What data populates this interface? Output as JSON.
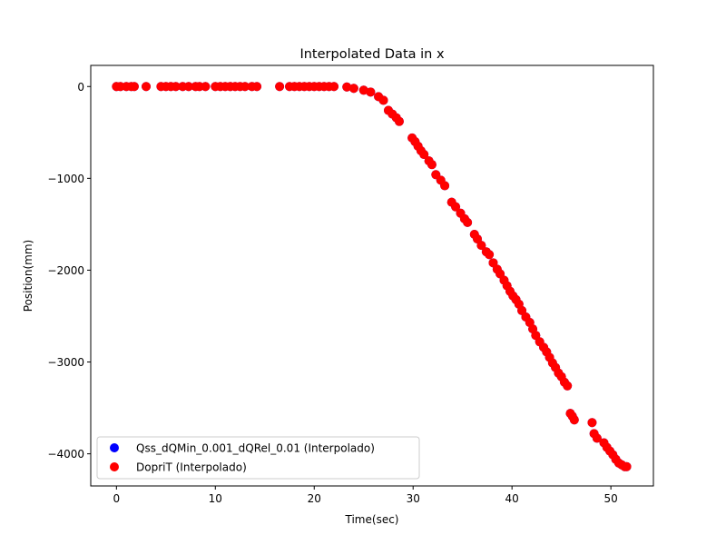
{
  "chart_data": {
    "type": "scatter",
    "title": "Interpolated Data in x",
    "xlabel": "Time(sec)",
    "ylabel": "Position(mm)",
    "xlim": [
      -2.6,
      54.3
    ],
    "ylim": [
      -4350,
      230
    ],
    "xticks": [
      0,
      10,
      20,
      30,
      40,
      50
    ],
    "yticks": [
      -4000,
      -3000,
      -2000,
      -1000,
      0
    ],
    "xtick_labels": [
      "0",
      "10",
      "20",
      "30",
      "40",
      "50"
    ],
    "ytick_labels": [
      "−4000",
      "−3000",
      "−2000",
      "−1000",
      "0"
    ],
    "grid": false,
    "legend_position": "lower-left",
    "series": [
      {
        "name": "Qss_dQMin_0.001_dQRel_0.01 (Interpolado)",
        "color": "#0000ff",
        "x": [
          0,
          0.4,
          1.0,
          1.5,
          1.8,
          3.0,
          4.5,
          5.0,
          5.5,
          6.0,
          6.7,
          7.3,
          8.0,
          8.4,
          9.0,
          10.0,
          10.5,
          11.0,
          11.5,
          12.0,
          12.5,
          13.0,
          13.7,
          14.2,
          16.5,
          17.5,
          18.0,
          18.5,
          19.0,
          19.5,
          20.0,
          20.5,
          21.0,
          21.5,
          22.0,
          23.3,
          24.0,
          25.0,
          25.7,
          26.5,
          27.0,
          27.5,
          27.9,
          28.3,
          28.6,
          29.9,
          30.2,
          30.5,
          30.8,
          31.1,
          31.6,
          31.9,
          32.3,
          32.8,
          33.2,
          33.9,
          34.3,
          34.8,
          35.2,
          35.5,
          36.2,
          36.5,
          36.9,
          37.4,
          37.7,
          38.1,
          38.5,
          38.8,
          39.2,
          39.5,
          39.8,
          40.1,
          40.4,
          40.7,
          41.0,
          41.4,
          41.8,
          42.1,
          42.4,
          42.8,
          43.2,
          43.5,
          43.8,
          44.1,
          44.4,
          44.7,
          45.0,
          45.3,
          45.6,
          45.9,
          46.1,
          46.3,
          48.1,
          48.3,
          48.6,
          49.3,
          49.6,
          49.9,
          50.2,
          50.5,
          50.8,
          51.1,
          51.4,
          51.6
        ],
        "y": [
          0,
          0,
          0,
          0,
          0,
          0,
          0,
          0,
          0,
          0,
          0,
          0,
          0,
          0,
          0,
          0,
          0,
          0,
          0,
          0,
          0,
          0,
          0,
          0,
          0,
          0,
          0,
          0,
          0,
          0,
          0,
          0,
          0,
          0,
          0,
          -5,
          -20,
          -40,
          -60,
          -110,
          -150,
          -260,
          -300,
          -340,
          -380,
          -560,
          -600,
          -650,
          -700,
          -740,
          -810,
          -850,
          -960,
          -1020,
          -1080,
          -1260,
          -1310,
          -1380,
          -1440,
          -1480,
          -1610,
          -1660,
          -1730,
          -1800,
          -1830,
          -1920,
          -1990,
          -2040,
          -2110,
          -2170,
          -2230,
          -2280,
          -2320,
          -2370,
          -2440,
          -2510,
          -2570,
          -2640,
          -2710,
          -2780,
          -2840,
          -2890,
          -2950,
          -3010,
          -3060,
          -3120,
          -3160,
          -3220,
          -3260,
          -3560,
          -3590,
          -3630,
          -3660,
          -3780,
          -3830,
          -3880,
          -3930,
          -3970,
          -4010,
          -4060,
          -4100,
          -4120,
          -4140,
          -4140
        ]
      },
      {
        "name": "DopriT (Interpolado)",
        "color": "#ff0000",
        "x": [
          0,
          0.4,
          1.0,
          1.5,
          1.8,
          3.0,
          4.5,
          5.0,
          5.5,
          6.0,
          6.7,
          7.3,
          8.0,
          8.4,
          9.0,
          10.0,
          10.5,
          11.0,
          11.5,
          12.0,
          12.5,
          13.0,
          13.7,
          14.2,
          16.5,
          17.5,
          18.0,
          18.5,
          19.0,
          19.5,
          20.0,
          20.5,
          21.0,
          21.5,
          22.0,
          23.3,
          24.0,
          25.0,
          25.7,
          26.5,
          27.0,
          27.5,
          27.9,
          28.3,
          28.6,
          29.9,
          30.2,
          30.5,
          30.8,
          31.1,
          31.6,
          31.9,
          32.3,
          32.8,
          33.2,
          33.9,
          34.3,
          34.8,
          35.2,
          35.5,
          36.2,
          36.5,
          36.9,
          37.4,
          37.7,
          38.1,
          38.5,
          38.8,
          39.2,
          39.5,
          39.8,
          40.1,
          40.4,
          40.7,
          41.0,
          41.4,
          41.8,
          42.1,
          42.4,
          42.8,
          43.2,
          43.5,
          43.8,
          44.1,
          44.4,
          44.7,
          45.0,
          45.3,
          45.6,
          45.9,
          46.1,
          46.3,
          48.1,
          48.3,
          48.6,
          49.3,
          49.6,
          49.9,
          50.2,
          50.5,
          50.8,
          51.1,
          51.4,
          51.6
        ],
        "y": [
          0,
          0,
          0,
          0,
          0,
          0,
          0,
          0,
          0,
          0,
          0,
          0,
          0,
          0,
          0,
          0,
          0,
          0,
          0,
          0,
          0,
          0,
          0,
          0,
          0,
          0,
          0,
          0,
          0,
          0,
          0,
          0,
          0,
          0,
          0,
          -5,
          -20,
          -40,
          -60,
          -110,
          -150,
          -260,
          -300,
          -340,
          -380,
          -560,
          -600,
          -650,
          -700,
          -740,
          -810,
          -850,
          -960,
          -1020,
          -1080,
          -1260,
          -1310,
          -1380,
          -1440,
          -1480,
          -1610,
          -1660,
          -1730,
          -1800,
          -1830,
          -1920,
          -1990,
          -2040,
          -2110,
          -2170,
          -2230,
          -2280,
          -2320,
          -2370,
          -2440,
          -2510,
          -2570,
          -2640,
          -2710,
          -2780,
          -2840,
          -2890,
          -2950,
          -3010,
          -3060,
          -3120,
          -3160,
          -3220,
          -3260,
          -3560,
          -3590,
          -3630,
          -3660,
          -3780,
          -3830,
          -3880,
          -3930,
          -3970,
          -4010,
          -4060,
          -4100,
          -4120,
          -4140,
          -4140
        ]
      }
    ]
  }
}
